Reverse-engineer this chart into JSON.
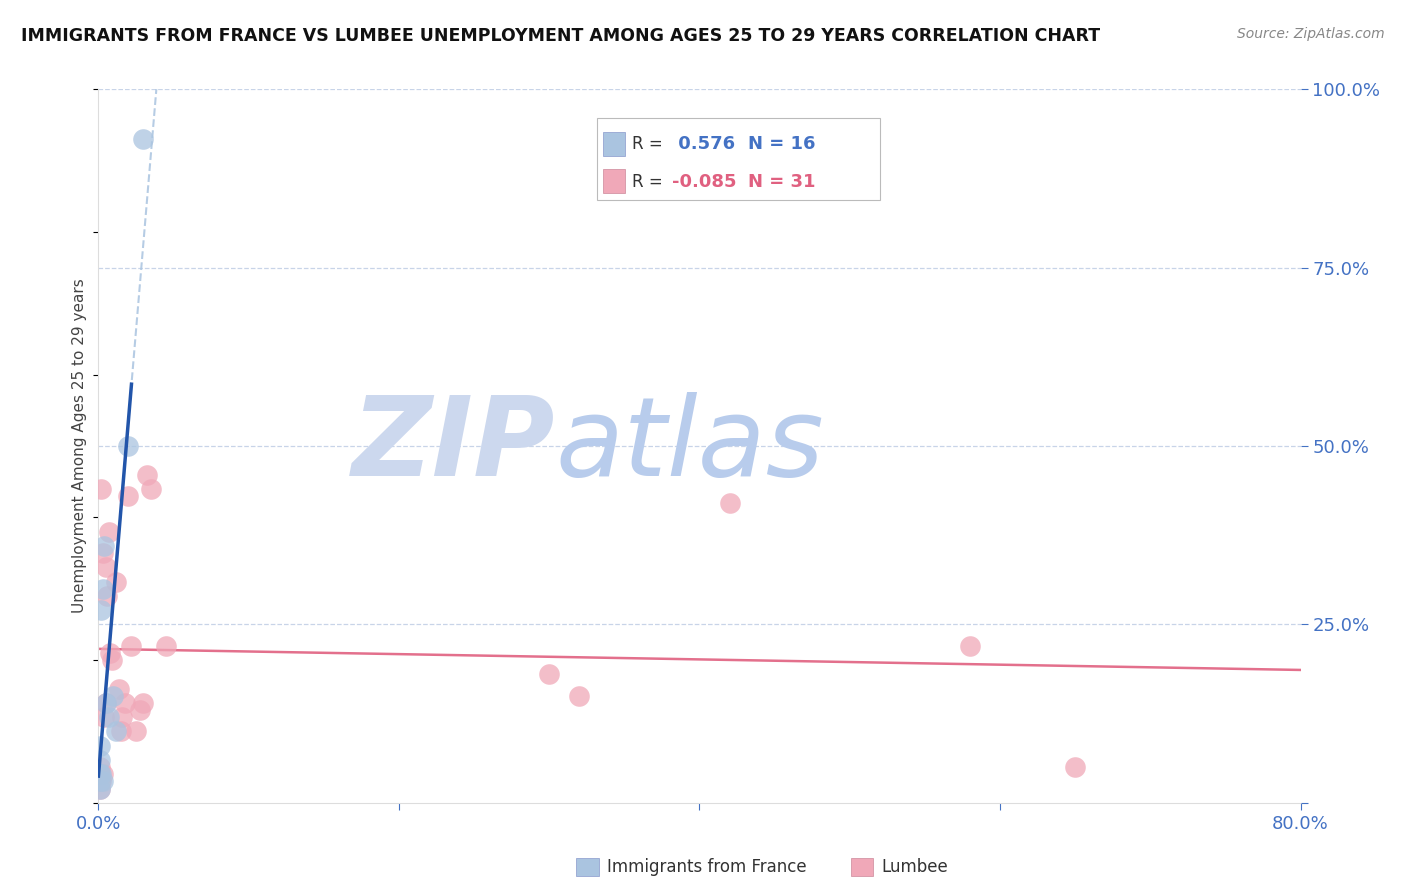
{
  "title": "IMMIGRANTS FROM FRANCE VS LUMBEE UNEMPLOYMENT AMONG AGES 25 TO 29 YEARS CORRELATION CHART",
  "source": "Source: ZipAtlas.com",
  "ylabel": "Unemployment Among Ages 25 to 29 years",
  "xlim": [
    0.0,
    0.8
  ],
  "ylim": [
    0.0,
    1.0
  ],
  "xticks": [
    0.0,
    0.2,
    0.4,
    0.6,
    0.8
  ],
  "xtick_labels": [
    "0.0%",
    "",
    "",
    "",
    "80.0%"
  ],
  "ytick_labels_right": [
    "100.0%",
    "75.0%",
    "50.0%",
    "25.0%",
    ""
  ],
  "yticks": [
    1.0,
    0.75,
    0.5,
    0.25,
    0.0
  ],
  "blue_R": 0.576,
  "blue_N": 16,
  "pink_R": -0.085,
  "pink_N": 31,
  "blue_scatter_x": [
    0.001,
    0.001,
    0.001,
    0.001,
    0.001,
    0.002,
    0.002,
    0.003,
    0.003,
    0.004,
    0.005,
    0.007,
    0.01,
    0.012,
    0.02,
    0.03
  ],
  "blue_scatter_y": [
    0.02,
    0.03,
    0.04,
    0.06,
    0.08,
    0.04,
    0.27,
    0.03,
    0.3,
    0.36,
    0.14,
    0.12,
    0.15,
    0.1,
    0.5,
    0.93
  ],
  "pink_scatter_x": [
    0.001,
    0.001,
    0.002,
    0.002,
    0.003,
    0.003,
    0.004,
    0.005,
    0.005,
    0.006,
    0.007,
    0.008,
    0.009,
    0.012,
    0.014,
    0.015,
    0.016,
    0.018,
    0.02,
    0.022,
    0.025,
    0.028,
    0.03,
    0.032,
    0.035,
    0.045,
    0.3,
    0.32,
    0.42,
    0.58,
    0.65
  ],
  "pink_scatter_y": [
    0.02,
    0.05,
    0.03,
    0.44,
    0.04,
    0.35,
    0.12,
    0.14,
    0.33,
    0.29,
    0.38,
    0.21,
    0.2,
    0.31,
    0.16,
    0.1,
    0.12,
    0.14,
    0.43,
    0.22,
    0.1,
    0.13,
    0.14,
    0.46,
    0.44,
    0.22,
    0.18,
    0.15,
    0.42,
    0.22,
    0.05
  ],
  "blue_color": "#aac4e0",
  "pink_color": "#f0a8b8",
  "blue_fill_color": "#aac4e0",
  "pink_fill_color": "#f0a8b8",
  "blue_line_color": "#2255aa",
  "pink_line_color": "#e06080",
  "watermark_zip": "ZIP",
  "watermark_atlas": "atlas",
  "watermark_color_zip": "#d0dcf0",
  "watermark_color_atlas": "#b8ccf0",
  "tick_color": "#4472c4",
  "grid_color": "#c8d4e8",
  "legend_R_blue": "R =",
  "legend_val_blue": "  0.576",
  "legend_N_blue": "N = 16",
  "legend_R_pink": "R =",
  "legend_val_pink": "-0.085",
  "legend_N_pink": "N = 31",
  "background_color": "#ffffff"
}
